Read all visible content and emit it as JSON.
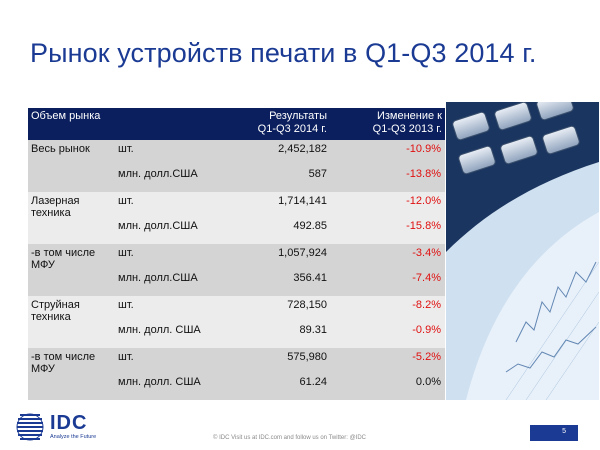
{
  "title": "Рынок устройств печати в Q1-Q3 2014 г.",
  "table": {
    "header": {
      "market": "Объем рынка",
      "results_l1": "Результаты",
      "results_l2": "Q1-Q3 2014 г.",
      "change_l1": "Изменение к",
      "change_l2": "Q1-Q3 2013 г."
    },
    "groups": [
      {
        "label": "Весь рынок",
        "rows": [
          {
            "unit": "шт.",
            "value": "2,452,182",
            "change": "-10.9%"
          },
          {
            "unit": "млн. долл.США",
            "value": "587",
            "change": "-13.8%"
          }
        ]
      },
      {
        "label": "Лазерная техника",
        "rows": [
          {
            "unit": "шт.",
            "value": "1,714,141",
            "change": "-12.0%"
          },
          {
            "unit": "млн. долл.США",
            "value": "492.85",
            "change": "-15.8%"
          }
        ]
      },
      {
        "label": "-в том числе МФУ",
        "rows": [
          {
            "unit": "шт.",
            "value": "1,057,924",
            "change": "-3.4%"
          },
          {
            "unit": "млн. долл.США",
            "value": "356.41",
            "change": "-7.4%"
          }
        ]
      },
      {
        "label": "Струйная техника",
        "rows": [
          {
            "unit": "шт.",
            "value": "728,150",
            "change": "-8.2%"
          },
          {
            "unit": "млн. долл. США",
            "value": "89.31",
            "change": "-0.9%"
          }
        ]
      },
      {
        "label": "-в том числе МФУ",
        "rows": [
          {
            "unit": "шт.",
            "value": "575,980",
            "change": "-5.2%"
          },
          {
            "unit": "млн. долл. США",
            "value": "61.24",
            "change": "0.0%"
          }
        ]
      }
    ]
  },
  "footer": {
    "logo": "IDC",
    "tagline": "Analyze the Future",
    "text": "© IDC  Visit us at IDC.com and follow us on Twitter: @IDC",
    "page": "5"
  },
  "colors": {
    "title": "#1a3a93",
    "header_bg": "#0b1f5e",
    "negative": "#e01010",
    "band_dark": "#d4d4d4",
    "band_light": "#ececec"
  },
  "image": {
    "icon": "calculator-finance-photo"
  }
}
